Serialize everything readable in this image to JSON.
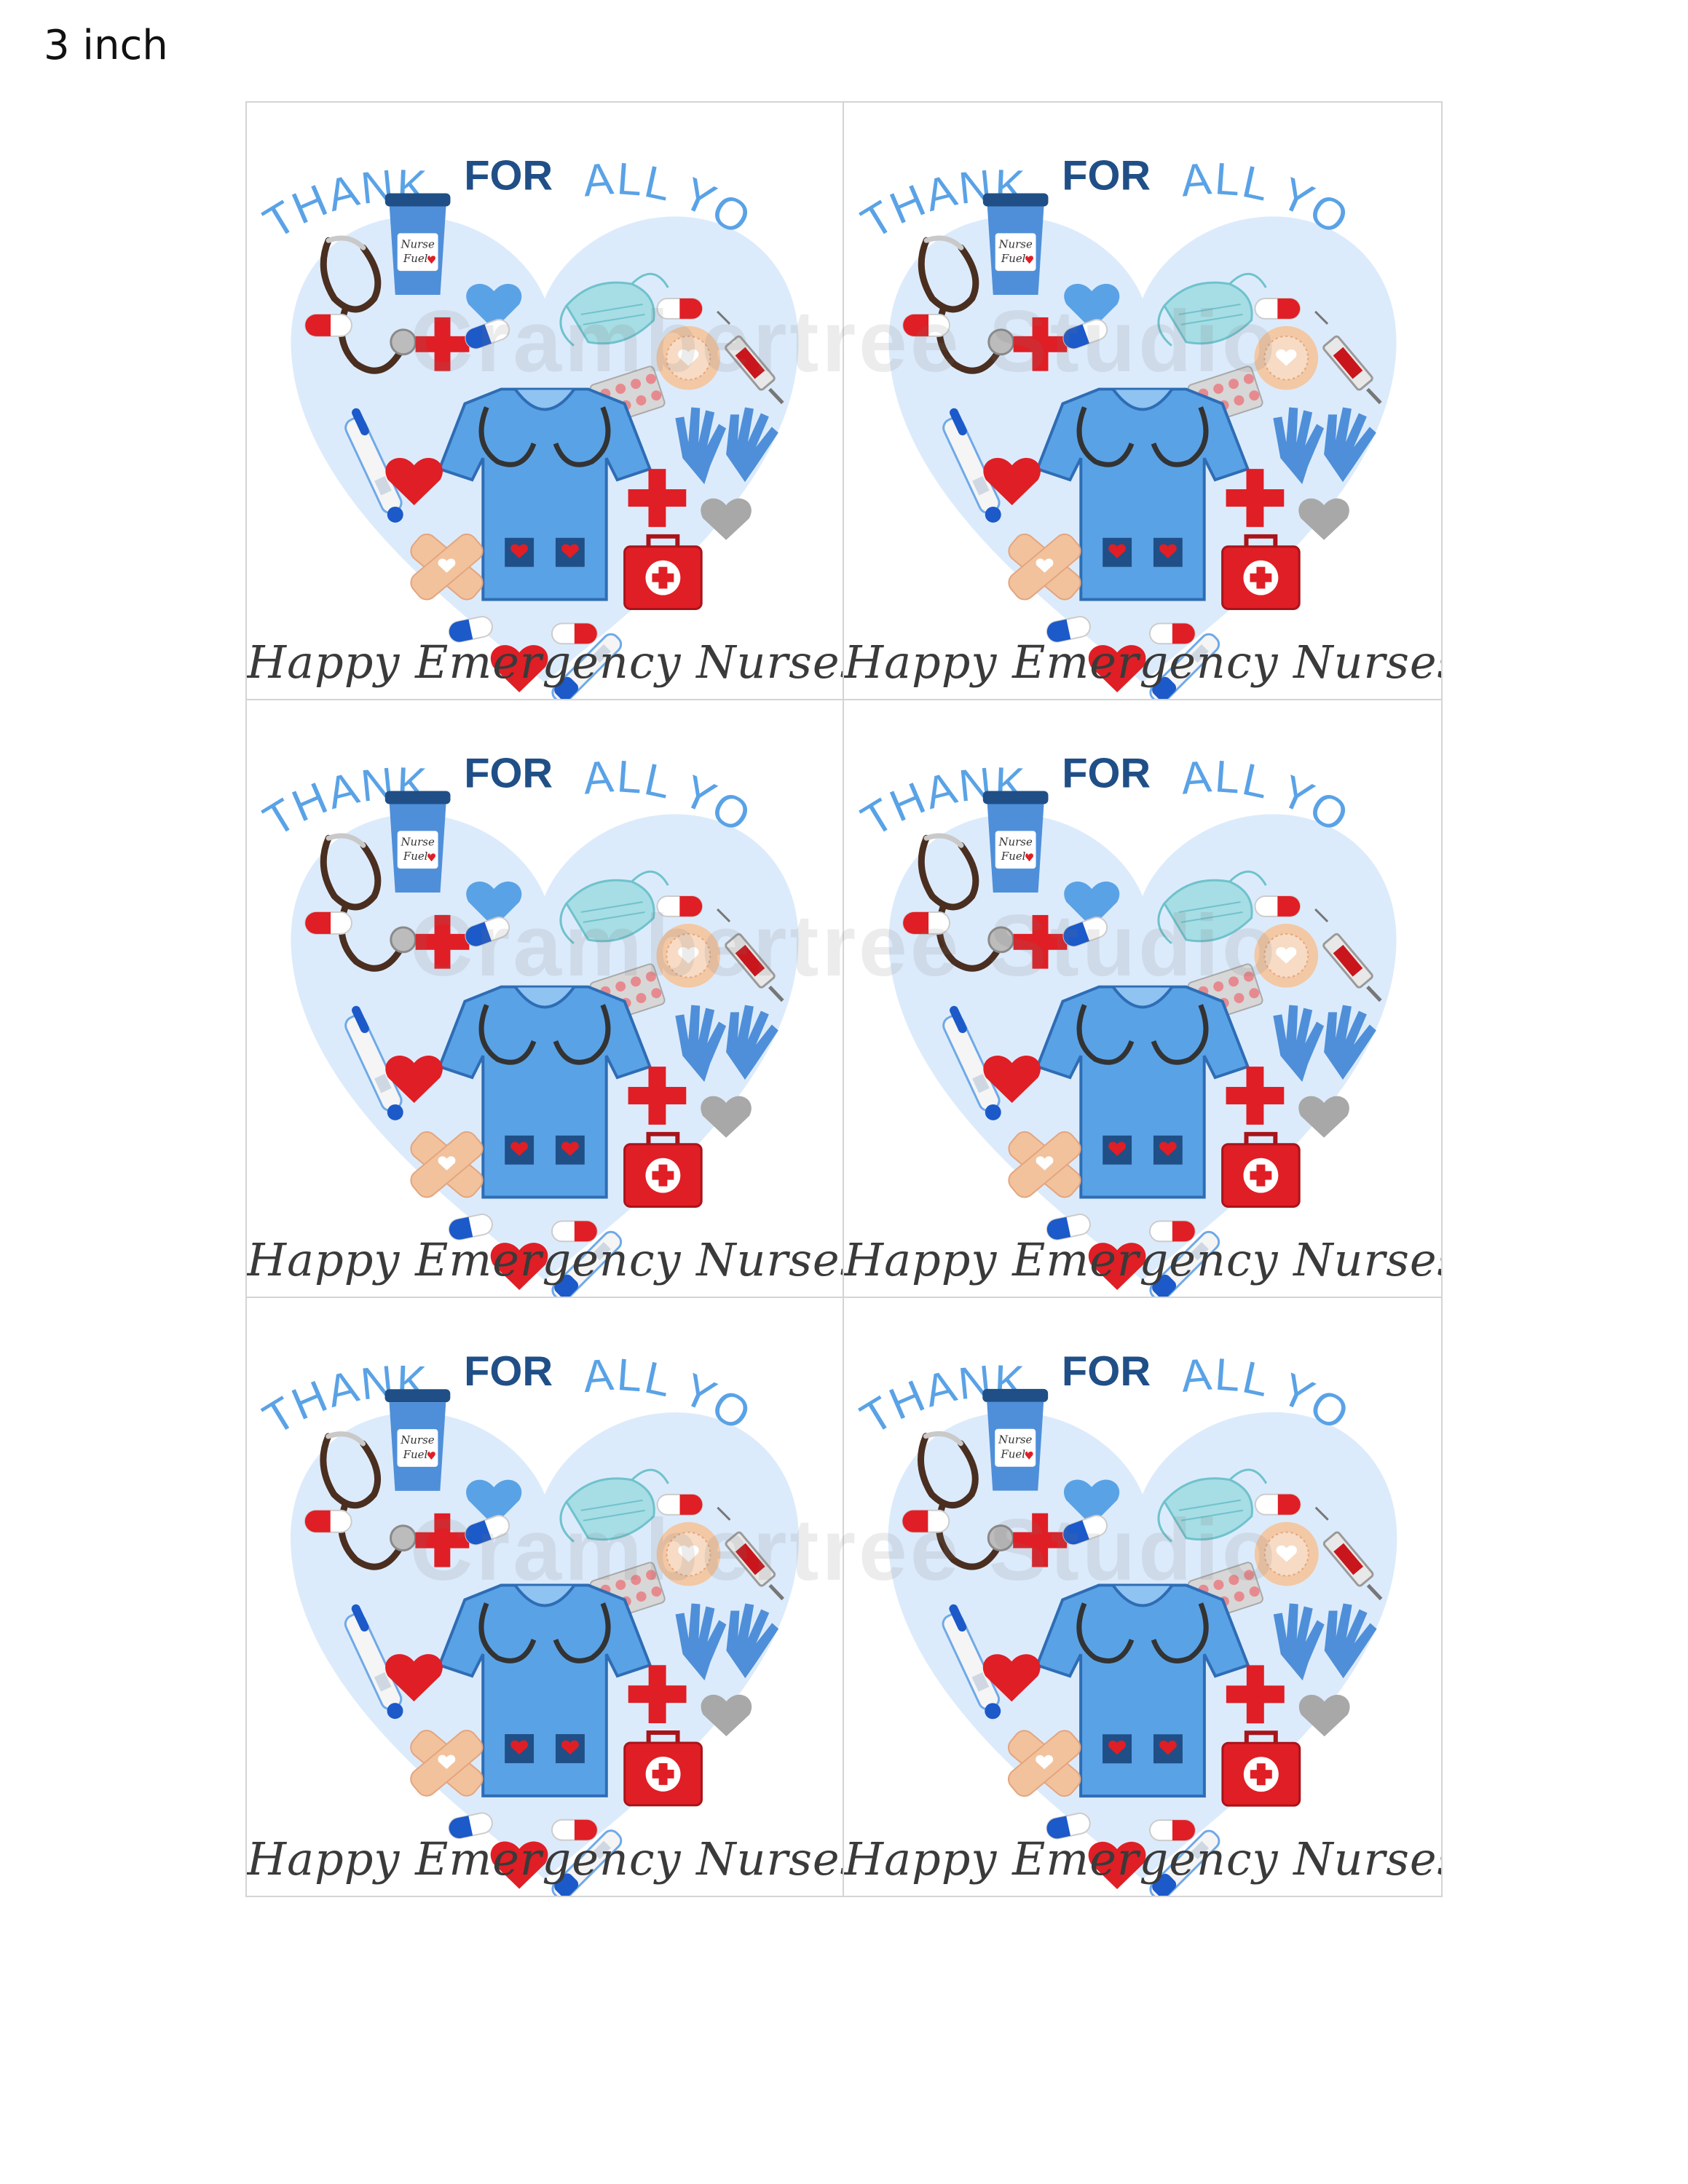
{
  "size_label": "3 inch",
  "watermark": "Crambertree Studio",
  "card": {
    "headline_thank_you": "THANK YOU",
    "headline_for": "FOR",
    "headline_all_you_do": "ALL YOU DO!",
    "cup_label_line1": "Nurse",
    "cup_label_line2": "Fuel",
    "tagline": "Happy Emergency Nurses Week"
  },
  "colors": {
    "heart_bg": "#dcebfb",
    "light_blue": "#5aa2e6",
    "dark_blue": "#1f4f86",
    "red": "#e01e25",
    "tagline": "#3a3a3a",
    "gray": "#a8a8a8"
  }
}
